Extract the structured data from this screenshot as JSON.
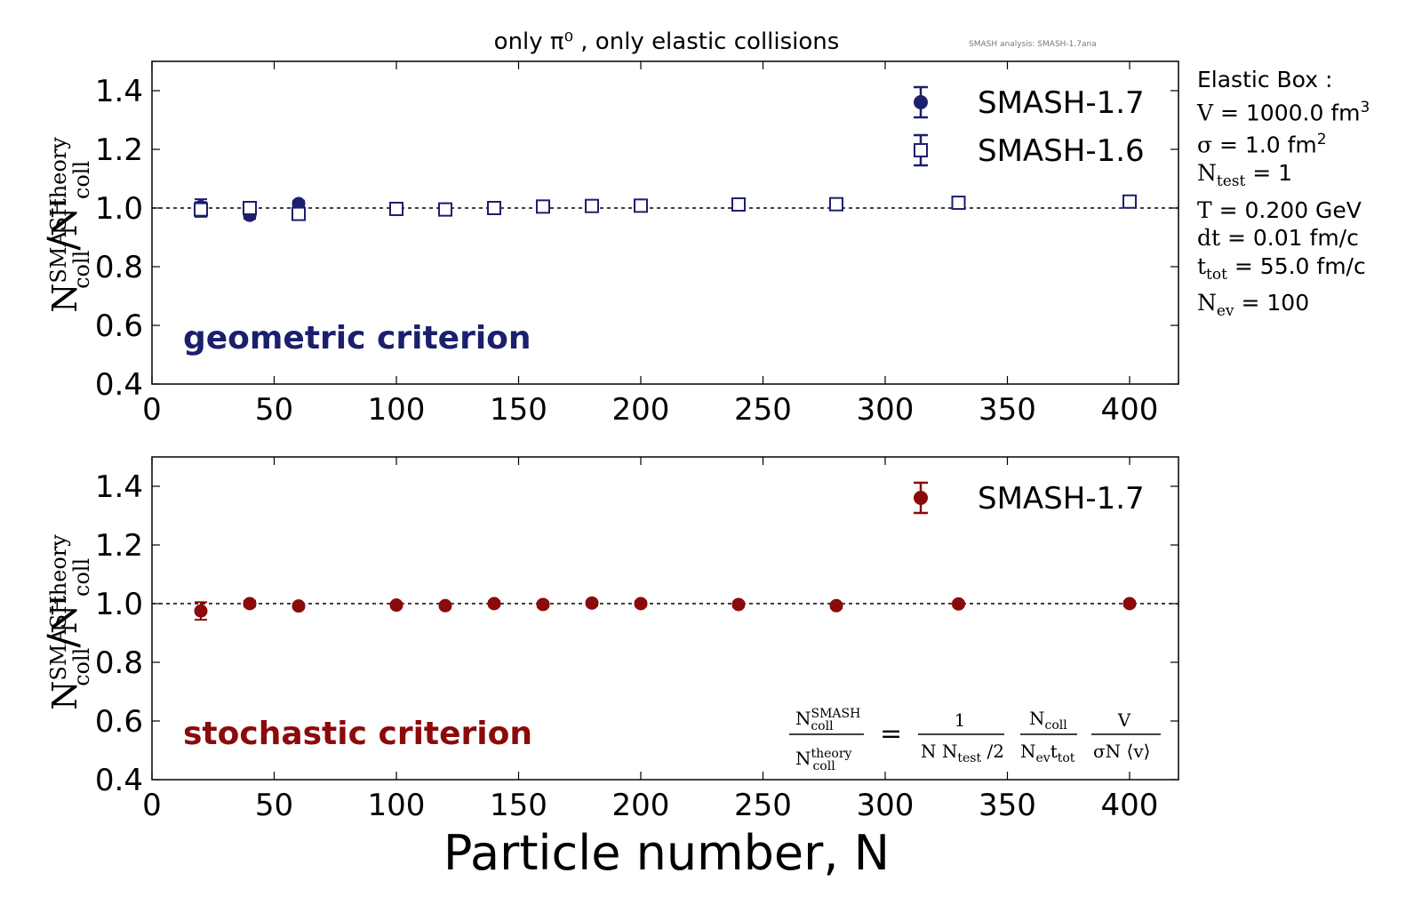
{
  "chart_data": [
    {
      "type": "scatter",
      "title": "only π⁰ , only elastic collisions",
      "watermark": "SMASH analysis: SMASH-1.7ana",
      "annotation": "geometric criterion",
      "annotation_color": "#1b1f6e",
      "xlabel": "",
      "ylabel": "N_coll^SMASH / N_coll^theory",
      "xlim": [
        0,
        420
      ],
      "ylim": [
        0.4,
        1.5
      ],
      "xticks": [
        0,
        50,
        100,
        150,
        200,
        250,
        300,
        350,
        400
      ],
      "yticks": [
        0.4,
        0.6,
        0.8,
        1.0,
        1.2,
        1.4
      ],
      "reference_line": 1.0,
      "legend_position": "top-right",
      "series": [
        {
          "name": "SMASH-1.7",
          "marker": "filled-circle",
          "color": "#1b1f6e",
          "x": [
            20,
            40,
            60,
            100,
            120,
            140,
            160,
            180,
            200,
            240,
            280,
            330,
            400
          ],
          "y": [
            1.005,
            0.975,
            1.015,
            0.998,
            0.997,
            1.0,
            1.005,
            1.008,
            1.01,
            1.012,
            1.013,
            1.018,
            1.022
          ],
          "err": [
            0.025,
            0.012,
            0.01,
            0.01,
            0.01,
            0.01,
            0.008,
            0.008,
            0.008,
            0.008,
            0.008,
            0.008,
            0.008
          ]
        },
        {
          "name": "SMASH-1.6",
          "marker": "open-square",
          "color": "#1b1f6e",
          "x": [
            20,
            40,
            60,
            100,
            120,
            140,
            160,
            180,
            200,
            240,
            280,
            330,
            400
          ],
          "y": [
            0.995,
            1.0,
            0.98,
            0.997,
            0.995,
            1.0,
            1.005,
            1.007,
            1.008,
            1.012,
            1.013,
            1.018,
            1.022
          ],
          "err": [
            0.025,
            0.02,
            0.015,
            0.012,
            0.01,
            0.01,
            0.008,
            0.008,
            0.008,
            0.008,
            0.008,
            0.008,
            0.008
          ]
        }
      ]
    },
    {
      "type": "scatter",
      "annotation": "stochastic criterion",
      "annotation_color": "#8b0a0a",
      "xlabel": "Particle number, N",
      "ylabel": "N_coll^SMASH / N_coll^theory",
      "xlim": [
        0,
        420
      ],
      "ylim": [
        0.4,
        1.5
      ],
      "xticks": [
        0,
        50,
        100,
        150,
        200,
        250,
        300,
        350,
        400
      ],
      "yticks": [
        0.4,
        0.6,
        0.8,
        1.0,
        1.2,
        1.4
      ],
      "reference_line": 1.0,
      "legend_position": "top-right",
      "series": [
        {
          "name": "SMASH-1.7",
          "marker": "filled-circle",
          "color": "#8b0a0a",
          "x": [
            20,
            40,
            60,
            100,
            120,
            140,
            160,
            180,
            200,
            240,
            280,
            330,
            400
          ],
          "y": [
            0.975,
            1.0,
            0.992,
            0.995,
            0.993,
            1.0,
            0.997,
            1.002,
            1.0,
            0.997,
            0.993,
            0.999,
            1.0
          ],
          "err": [
            0.03,
            0.01,
            0.008,
            0.008,
            0.008,
            0.008,
            0.008,
            0.008,
            0.008,
            0.008,
            0.008,
            0.008,
            0.008
          ]
        }
      ]
    }
  ],
  "parameters": {
    "heading": "Elastic Box",
    "V_value": "1000.0 fm",
    "V_exp": "3",
    "sigma_value": "1.0 fm",
    "sigma_exp": "2",
    "ntest_value": "1",
    "T_value": "0.200 GeV",
    "dt_value": "0.01 fm/c",
    "ttot_value": "55.0 fm/c",
    "nev_value": "100"
  }
}
